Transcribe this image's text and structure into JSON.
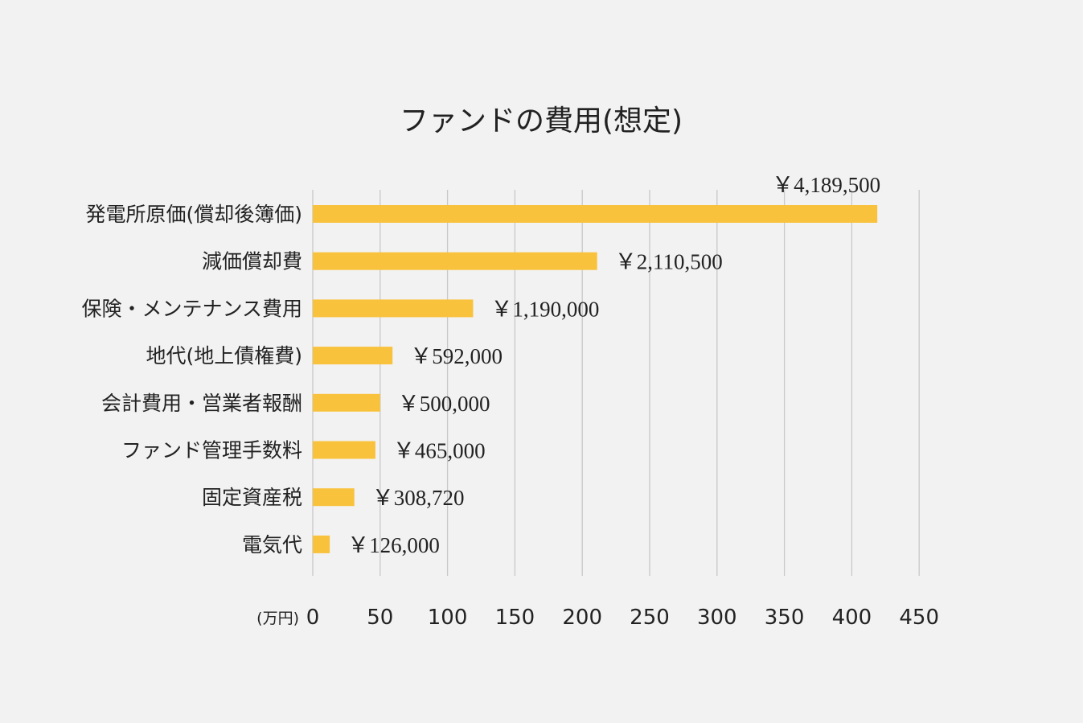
{
  "chart_data": {
    "type": "bar",
    "orientation": "horizontal",
    "title": "ファンドの費用(想定)",
    "xunit_label": "(万円)",
    "xlim": [
      0,
      450
    ],
    "xticks": [
      "0",
      "50",
      "100",
      "150",
      "200",
      "250",
      "300",
      "350",
      "400",
      "450"
    ],
    "grid": true,
    "bar_color": "#f9c23c",
    "background": "#f2f2f2",
    "categories": [
      "発電所原価(償却後簿価)",
      "減価償却費",
      "保険・メンテナンス費用",
      "地代(地上債権費)",
      "会計費用・営業者報酬",
      "ファンド管理手数料",
      "固定資産税",
      "電気代"
    ],
    "values": [
      418.95,
      211.05,
      119,
      59.2,
      50,
      46.5,
      30.872,
      12.6
    ],
    "data_labels": [
      "￥4,189,500",
      "￥2,110,500",
      "￥1,190,000",
      "￥592,000",
      "￥500,000",
      "￥465,000",
      "￥308,720",
      "￥126,000"
    ]
  }
}
